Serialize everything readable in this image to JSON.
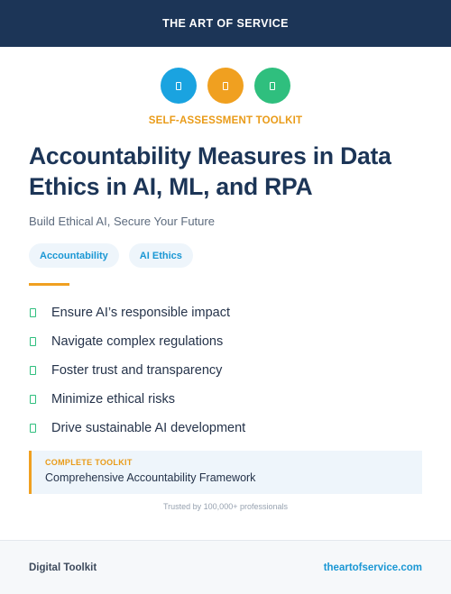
{
  "header": {
    "brand": "THE ART OF SERVICE"
  },
  "icons": [
    {
      "name": "blue-square-icon",
      "color": "#1aa3e0"
    },
    {
      "name": "orange-square-icon",
      "color": "#f0a020"
    },
    {
      "name": "green-square-icon",
      "color": "#2fbf7e"
    }
  ],
  "kicker": "SELF-ASSESSMENT TOOLKIT",
  "title_lines": [
    "Accountability Measures in Data",
    "Ethics in AI, ML, and RPA"
  ],
  "subtitle": "Build Ethical AI, Secure Your Future",
  "tags": [
    "Accountability",
    "AI Ethics"
  ],
  "features": [
    "Ensure AI’s responsible impact",
    "Navigate complex regulations",
    "Foster trust and transparency",
    "Minimize ethical risks",
    "Drive sustainable AI development"
  ],
  "callout": {
    "label": "COMPLETE TOOLKIT",
    "text": "Comprehensive Accountability Framework"
  },
  "trust_line": "Trusted by 100,000+ professionals",
  "footer": {
    "left": "Digital Toolkit",
    "right": "theartofservice.com"
  },
  "colors": {
    "navy": "#1c3557",
    "accent": "#f0a020",
    "link": "#1a97d4",
    "check": "#2fbf7e"
  }
}
